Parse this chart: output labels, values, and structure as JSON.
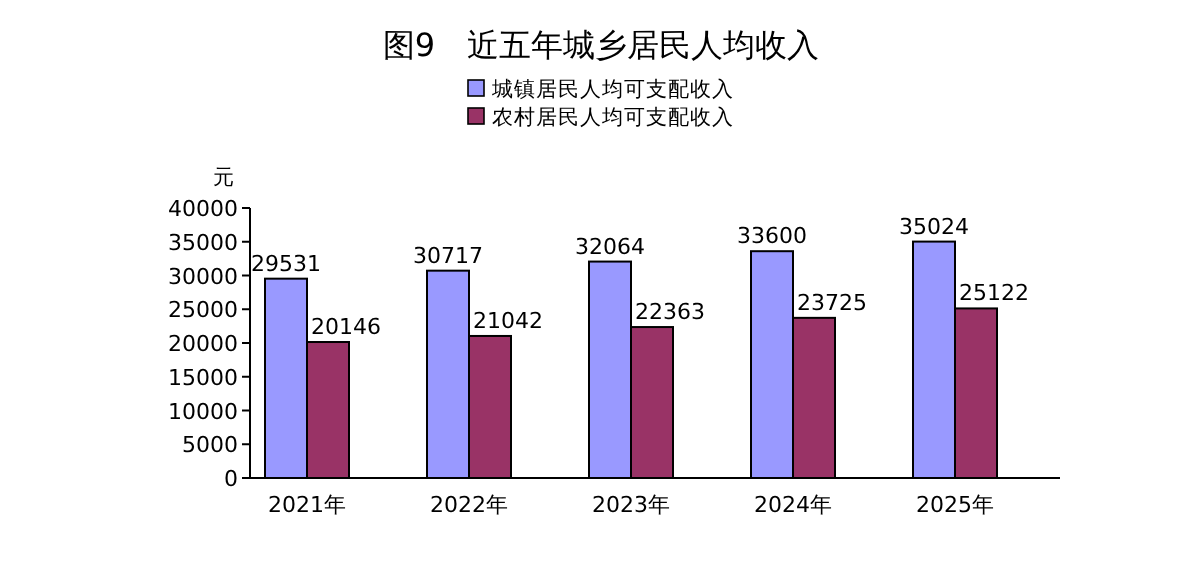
{
  "chart_data": {
    "type": "bar",
    "title": "图9　近五年城乡居民人均收入",
    "ylabel": "元",
    "categories": [
      "2021年",
      "2022年",
      "2023年",
      "2024年",
      "2025年"
    ],
    "series": [
      {
        "name": "城镇居民人均可支配收入",
        "color": "#9999ff",
        "values": [
          29531,
          30717,
          32064,
          33600,
          35024
        ]
      },
      {
        "name": "农村居民人均可支配收入",
        "color": "#993366",
        "values": [
          20146,
          21042,
          22363,
          23725,
          25122
        ]
      }
    ],
    "ylim": [
      0,
      40000
    ],
    "yticks": [
      0,
      5000,
      10000,
      15000,
      20000,
      25000,
      30000,
      35000,
      40000
    ],
    "data_labels": true,
    "legend": "top",
    "grid": false
  }
}
